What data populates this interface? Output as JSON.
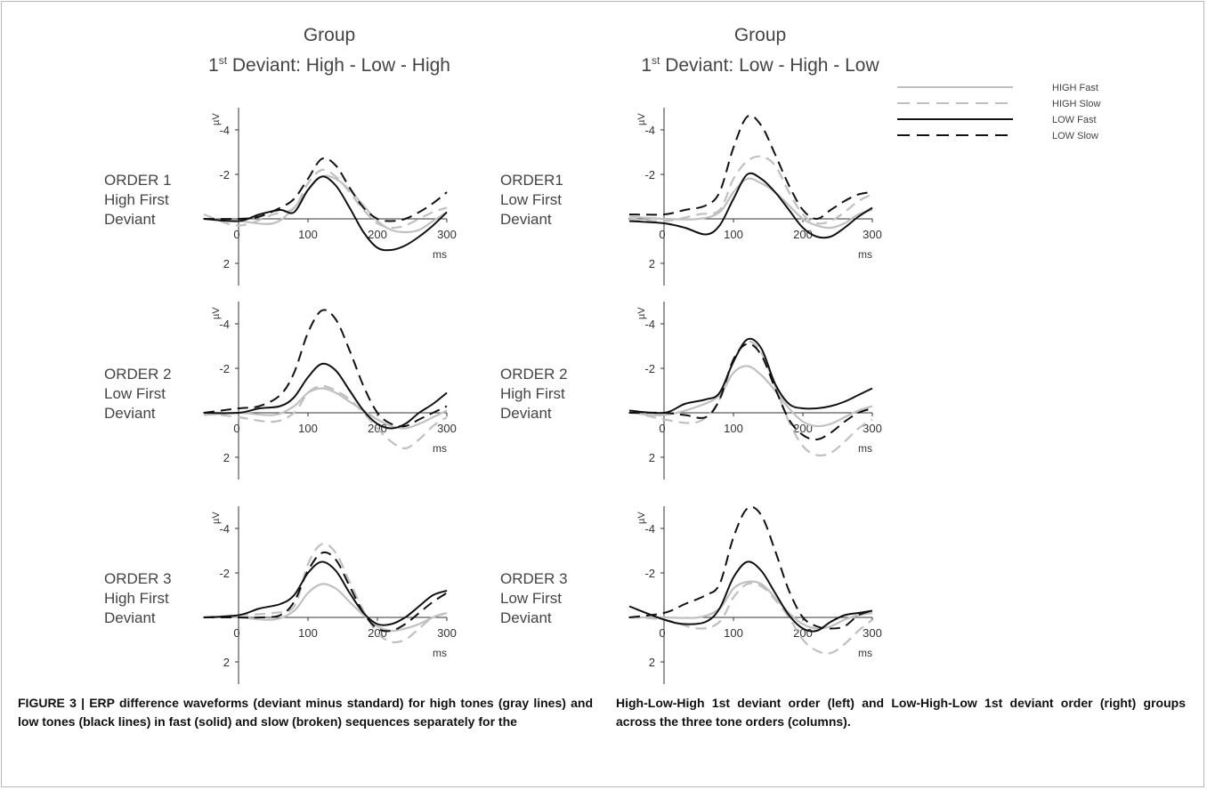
{
  "columns": [
    {
      "title": "Group",
      "subtitle_pre": "1",
      "subtitle_sup": "st",
      "subtitle_post": " Deviant: High - Low - High"
    },
    {
      "title": "Group",
      "subtitle_pre": "1",
      "subtitle_sup": "st",
      "subtitle_post": " Deviant: Low - High - Low"
    }
  ],
  "row_labels": [
    [
      "ORDER 1",
      "High First",
      "Deviant"
    ],
    [
      "ORDER1",
      "Low First",
      "Deviant"
    ],
    [
      "ORDER 2",
      "Low First",
      "Deviant"
    ],
    [
      "ORDER 2",
      "High First",
      "Deviant"
    ],
    [
      "ORDER 3",
      "High First",
      "Deviant"
    ],
    [
      "ORDER 3",
      "Low First",
      "Deviant"
    ]
  ],
  "legend": [
    {
      "name": "HIGH Fast",
      "color": "#c0c0c0",
      "dash": "solid"
    },
    {
      "name": "HIGH Slow",
      "color": "#c0c0c0",
      "dash": "dashed"
    },
    {
      "name": "LOW Fast",
      "color": "#111111",
      "dash": "solid"
    },
    {
      "name": "LOW Slow",
      "color": "#111111",
      "dash": "dashed"
    }
  ],
  "caption": {
    "left": "FIGURE 3 | ERP difference waveforms (deviant minus standard) for high tones (gray lines) and low tones (black lines) in fast (solid) and slow (broken) sequences separately for the",
    "right": "High-Low-High 1st deviant order (left) and Low-High-Low 1st deviant order (right) groups across the three tone orders (columns)."
  },
  "chart_data": [
    {
      "type": "line",
      "panel": "Group 1st Deviant: High - Low - High / ORDER 1",
      "ylabel": "µV",
      "xunit": "ms",
      "xticks": [
        0,
        100,
        200,
        300
      ],
      "yticks": [
        -4,
        -2,
        2
      ],
      "xlim": [
        -50,
        300
      ],
      "ylim": [
        -5,
        3
      ],
      "y_inverted": true,
      "series": [
        {
          "name": "HIGH Fast",
          "x": [
            -50,
            0,
            50,
            80,
            100,
            120,
            140,
            160,
            180,
            200,
            220,
            240,
            260,
            280,
            300
          ],
          "y": [
            0,
            0.1,
            0.2,
            -0.5,
            -1.3,
            -1.9,
            -1.8,
            -1.3,
            -0.6,
            0.1,
            0.5,
            0.6,
            0.5,
            0.1,
            -0.3
          ]
        },
        {
          "name": "HIGH Slow",
          "x": [
            -50,
            0,
            50,
            80,
            100,
            120,
            140,
            160,
            180,
            200,
            220,
            240,
            260,
            280,
            300
          ],
          "y": [
            -0.2,
            0.3,
            -0.2,
            -0.5,
            -1.6,
            -2.2,
            -1.9,
            -1.2,
            -0.4,
            0.2,
            0.4,
            0.3,
            0,
            -0.3,
            -0.5
          ]
        },
        {
          "name": "LOW Fast",
          "x": [
            -50,
            0,
            30,
            60,
            80,
            100,
            120,
            140,
            160,
            180,
            200,
            220,
            240,
            260,
            280,
            300
          ],
          "y": [
            0,
            0.1,
            -0.2,
            -0.4,
            -0.3,
            -1.3,
            -1.9,
            -1.5,
            -0.5,
            0.6,
            1.3,
            1.4,
            1.2,
            0.8,
            0.3,
            -0.3
          ]
        },
        {
          "name": "LOW Slow",
          "x": [
            -50,
            0,
            30,
            60,
            80,
            100,
            120,
            140,
            160,
            180,
            200,
            220,
            240,
            260,
            280,
            300
          ],
          "y": [
            0,
            0,
            -0.1,
            -0.5,
            -0.9,
            -1.8,
            -2.7,
            -2.4,
            -1.4,
            -0.5,
            0,
            0.1,
            0,
            -0.3,
            -0.7,
            -1.2
          ]
        }
      ]
    },
    {
      "type": "line",
      "panel": "Group 1st Deviant: Low - High - Low / ORDER1",
      "ylabel": "µV",
      "xunit": "ms",
      "xticks": [
        0,
        100,
        200,
        300
      ],
      "yticks": [
        -4,
        -2,
        2
      ],
      "xlim": [
        -50,
        300
      ],
      "ylim": [
        -5,
        3
      ],
      "y_inverted": true,
      "series": [
        {
          "name": "HIGH Fast",
          "x": [
            -50,
            0,
            50,
            80,
            100,
            120,
            140,
            160,
            180,
            200,
            220,
            240,
            260,
            280,
            300
          ],
          "y": [
            -0.1,
            0,
            0,
            -0.3,
            -1.2,
            -1.8,
            -1.6,
            -1.2,
            -0.6,
            0,
            0.3,
            0.4,
            0.2,
            -0.2,
            -0.4
          ]
        },
        {
          "name": "HIGH Slow",
          "x": [
            -50,
            0,
            50,
            80,
            100,
            120,
            140,
            160,
            180,
            200,
            220,
            240,
            260,
            280,
            300
          ],
          "y": [
            0,
            0.1,
            -0.2,
            -0.4,
            -1.8,
            -2.6,
            -2.8,
            -2.4,
            -1.2,
            -0.2,
            0.2,
            0.1,
            -0.3,
            -0.8,
            -1.1
          ]
        },
        {
          "name": "LOW Fast",
          "x": [
            -50,
            0,
            30,
            60,
            80,
            100,
            120,
            140,
            160,
            180,
            200,
            220,
            240,
            260,
            280,
            300
          ],
          "y": [
            0.1,
            0.2,
            0.4,
            0.7,
            0.3,
            -0.9,
            -2,
            -1.8,
            -1.2,
            -0.4,
            0.4,
            0.8,
            0.8,
            0.4,
            -0.1,
            -0.5
          ]
        },
        {
          "name": "LOW Slow",
          "x": [
            -50,
            0,
            30,
            60,
            80,
            100,
            120,
            140,
            160,
            180,
            200,
            220,
            240,
            260,
            280,
            300
          ],
          "y": [
            -0.2,
            -0.2,
            -0.4,
            -0.6,
            -1.2,
            -3.2,
            -4.6,
            -4.2,
            -2.9,
            -1.5,
            -0.4,
            0,
            -0.4,
            -0.8,
            -1.1,
            -1.2
          ]
        }
      ]
    },
    {
      "type": "line",
      "panel": "Group 1st Deviant: High - Low - High / ORDER 2",
      "ylabel": "µV",
      "xunit": "ms",
      "xticks": [
        0,
        100,
        200,
        300
      ],
      "yticks": [
        -4,
        -2,
        2
      ],
      "xlim": [
        -50,
        300
      ],
      "ylim": [
        -5,
        3
      ],
      "y_inverted": true,
      "series": [
        {
          "name": "HIGH Fast",
          "x": [
            -50,
            0,
            50,
            80,
            100,
            120,
            140,
            160,
            180,
            200,
            220,
            240,
            260,
            280,
            300
          ],
          "y": [
            0.1,
            0,
            0.1,
            -0.3,
            -0.9,
            -1.1,
            -0.9,
            -0.5,
            -0.1,
            0.3,
            0.6,
            0.7,
            0.5,
            0.2,
            -0.1
          ]
        },
        {
          "name": "HIGH Slow",
          "x": [
            -50,
            0,
            50,
            80,
            100,
            120,
            140,
            160,
            180,
            200,
            220,
            240,
            260,
            280,
            300
          ],
          "y": [
            0,
            0.2,
            0.4,
            0,
            -0.9,
            -1.2,
            -1,
            -0.6,
            0,
            0.7,
            1.3,
            1.6,
            1.2,
            0.6,
            0.2
          ]
        },
        {
          "name": "LOW Fast",
          "x": [
            -50,
            0,
            30,
            60,
            80,
            100,
            120,
            140,
            160,
            180,
            200,
            220,
            240,
            260,
            280,
            300
          ],
          "y": [
            0,
            0,
            -0.2,
            -0.3,
            -0.7,
            -1.6,
            -2.2,
            -1.9,
            -1,
            -0.1,
            0.5,
            0.7,
            0.5,
            0,
            -0.4,
            -0.9
          ]
        },
        {
          "name": "LOW Slow",
          "x": [
            -50,
            0,
            30,
            60,
            80,
            100,
            120,
            140,
            160,
            180,
            200,
            220,
            240,
            260,
            280,
            300
          ],
          "y": [
            0,
            -0.2,
            -0.3,
            -0.8,
            -1.8,
            -3.6,
            -4.6,
            -4.2,
            -2.8,
            -1.2,
            0,
            0.5,
            0.6,
            0.3,
            0,
            -0.3
          ]
        }
      ]
    },
    {
      "type": "line",
      "panel": "Group 1st Deviant: Low - High - Low / ORDER 2",
      "ylabel": "µV",
      "xunit": "ms",
      "xticks": [
        0,
        100,
        200,
        300
      ],
      "yticks": [
        -4,
        -2,
        2
      ],
      "xlim": [
        -50,
        300
      ],
      "ylim": [
        -5,
        3
      ],
      "y_inverted": true,
      "series": [
        {
          "name": "HIGH Fast",
          "x": [
            -50,
            0,
            50,
            80,
            100,
            120,
            140,
            160,
            180,
            200,
            220,
            240,
            260,
            280,
            300
          ],
          "y": [
            0,
            0.1,
            -0.3,
            -0.8,
            -1.8,
            -2.1,
            -1.7,
            -1,
            -0.2,
            0.4,
            0.6,
            0.5,
            0.2,
            -0.1,
            -0.3
          ]
        },
        {
          "name": "HIGH Slow",
          "x": [
            -50,
            0,
            50,
            80,
            100,
            120,
            140,
            160,
            180,
            200,
            220,
            240,
            260,
            280,
            300
          ],
          "y": [
            -0.1,
            0.3,
            0.4,
            -0.6,
            -2.3,
            -3.2,
            -2.7,
            -1.2,
            0.4,
            1.5,
            1.9,
            1.8,
            1.3,
            0.7,
            0.3
          ]
        },
        {
          "name": "LOW Fast",
          "x": [
            -50,
            0,
            30,
            60,
            80,
            100,
            120,
            140,
            160,
            180,
            200,
            220,
            240,
            260,
            280,
            300
          ],
          "y": [
            -0.1,
            0,
            -0.4,
            -0.6,
            -0.9,
            -2.3,
            -3.3,
            -2.9,
            -1.3,
            -0.4,
            -0.2,
            -0.2,
            -0.3,
            -0.5,
            -0.8,
            -1.1
          ]
        },
        {
          "name": "LOW Slow",
          "x": [
            -50,
            0,
            30,
            60,
            80,
            100,
            120,
            140,
            160,
            180,
            200,
            220,
            240,
            260,
            280,
            300
          ],
          "y": [
            0,
            0,
            0.1,
            0.2,
            -0.6,
            -2.4,
            -3.1,
            -2.6,
            -1.1,
            0.3,
            1.0,
            1.2,
            0.9,
            0.4,
            0,
            -0.2
          ]
        }
      ]
    },
    {
      "type": "line",
      "panel": "Group 1st Deviant: High - Low - High / ORDER 3",
      "ylabel": "µV",
      "xunit": "ms",
      "xticks": [
        0,
        100,
        200,
        300
      ],
      "yticks": [
        -4,
        -2,
        2
      ],
      "xlim": [
        -50,
        300
      ],
      "ylim": [
        -5,
        3
      ],
      "y_inverted": true,
      "series": [
        {
          "name": "HIGH Fast",
          "x": [
            -50,
            0,
            50,
            80,
            100,
            120,
            140,
            160,
            180,
            200,
            220,
            240,
            260,
            280,
            300
          ],
          "y": [
            0,
            0,
            0.1,
            -0.3,
            -1.1,
            -1.5,
            -1.3,
            -0.7,
            -0.1,
            0.4,
            0.6,
            0.5,
            0.3,
            0,
            -0.2
          ]
        },
        {
          "name": "HIGH Slow",
          "x": [
            -50,
            0,
            50,
            80,
            100,
            120,
            140,
            160,
            180,
            200,
            220,
            240,
            260,
            280,
            300
          ],
          "y": [
            0,
            -0.1,
            -0.2,
            -0.5,
            -2.4,
            -3.3,
            -2.9,
            -1.6,
            -0.3,
            0.7,
            1.1,
            1.0,
            0.5,
            0,
            -0.2
          ]
        },
        {
          "name": "LOW Fast",
          "x": [
            -50,
            0,
            30,
            60,
            80,
            100,
            120,
            140,
            160,
            180,
            200,
            220,
            240,
            260,
            280,
            300
          ],
          "y": [
            0,
            -0.1,
            -0.4,
            -0.6,
            -1.0,
            -2.0,
            -2.5,
            -2.1,
            -1.1,
            -0.2,
            0.3,
            0.3,
            0,
            -0.5,
            -1.0,
            -1.2
          ]
        },
        {
          "name": "LOW Slow",
          "x": [
            -50,
            0,
            30,
            60,
            80,
            100,
            120,
            140,
            160,
            180,
            200,
            220,
            240,
            260,
            280,
            300
          ],
          "y": [
            0,
            0,
            0,
            -0.1,
            -0.7,
            -2.1,
            -2.9,
            -2.6,
            -1.4,
            -0.2,
            0.5,
            0.6,
            0.3,
            -0.2,
            -0.7,
            -1.1
          ]
        }
      ]
    },
    {
      "type": "line",
      "panel": "Group 1st Deviant: Low - High - Low / ORDER 3",
      "ylabel": "µV",
      "xunit": "ms",
      "xticks": [
        0,
        100,
        200,
        300
      ],
      "yticks": [
        -4,
        -2,
        2
      ],
      "xlim": [
        -50,
        300
      ],
      "ylim": [
        -5,
        3
      ],
      "y_inverted": true,
      "series": [
        {
          "name": "HIGH Fast",
          "x": [
            -50,
            0,
            50,
            80,
            100,
            120,
            140,
            160,
            180,
            200,
            220,
            240,
            260,
            280,
            300
          ],
          "y": [
            0,
            0,
            0,
            -0.4,
            -1.3,
            -1.6,
            -1.5,
            -0.9,
            -0.2,
            0.3,
            0.5,
            0.4,
            0.1,
            -0.1,
            -0.2
          ]
        },
        {
          "name": "HIGH Slow",
          "x": [
            -50,
            0,
            50,
            80,
            100,
            120,
            140,
            160,
            180,
            200,
            220,
            240,
            260,
            280,
            300
          ],
          "y": [
            0,
            0.1,
            0.5,
            0.2,
            -0.9,
            -1.5,
            -1.4,
            -0.8,
            0,
            1.0,
            1.5,
            1.6,
            1.2,
            0.6,
            0.1
          ]
        },
        {
          "name": "LOW Fast",
          "x": [
            -50,
            0,
            30,
            60,
            80,
            100,
            120,
            140,
            160,
            180,
            200,
            220,
            240,
            260,
            280,
            300
          ],
          "y": [
            -0.5,
            0.1,
            0.3,
            0.2,
            -0.4,
            -1.8,
            -2.5,
            -2.1,
            -1.1,
            -0.1,
            0.5,
            0.6,
            0.2,
            -0.1,
            -0.2,
            -0.3
          ]
        },
        {
          "name": "LOW Slow",
          "x": [
            -50,
            0,
            30,
            60,
            80,
            100,
            120,
            140,
            160,
            180,
            200,
            220,
            240,
            260,
            280,
            300
          ],
          "y": [
            0,
            -0.2,
            -0.6,
            -1.0,
            -1.5,
            -3.6,
            -4.9,
            -4.6,
            -3.0,
            -1.2,
            0,
            0.4,
            0.5,
            0.4,
            -0.1,
            -0.3
          ]
        }
      ]
    }
  ]
}
